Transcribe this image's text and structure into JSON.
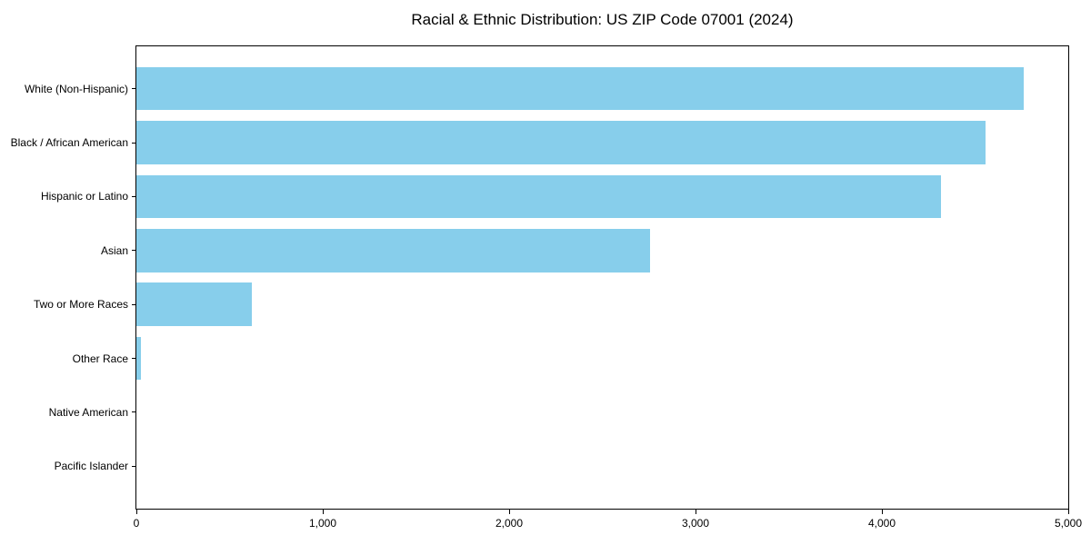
{
  "title": "Racial & Ethnic Distribution: US ZIP Code 07001 (2024)",
  "colors": {
    "bar": "#87CEEB",
    "axis": "#000000",
    "background": "#ffffff",
    "text": "#000000"
  },
  "chart_data": {
    "type": "bar",
    "orientation": "horizontal",
    "title": "Racial & Ethnic Distribution: US ZIP Code 07001 (2024)",
    "categories": [
      "White (Non-Hispanic)",
      "Black / African American",
      "Hispanic or Latino",
      "Asian",
      "Two or More Races",
      "Other Race",
      "Native American",
      "Pacific Islander"
    ],
    "values": [
      4760,
      4555,
      4315,
      2755,
      620,
      25,
      0,
      0
    ],
    "xlabel": "",
    "ylabel": "",
    "xlim": [
      0,
      5000
    ],
    "xticks": [
      0,
      1000,
      2000,
      3000,
      4000,
      5000
    ],
    "xtick_labels": [
      "0",
      "1,000",
      "2,000",
      "3,000",
      "4,000",
      "5,000"
    ],
    "bar_color": "#87CEEB",
    "bar_height_ratio": 0.8,
    "grid": false,
    "legend": null
  }
}
